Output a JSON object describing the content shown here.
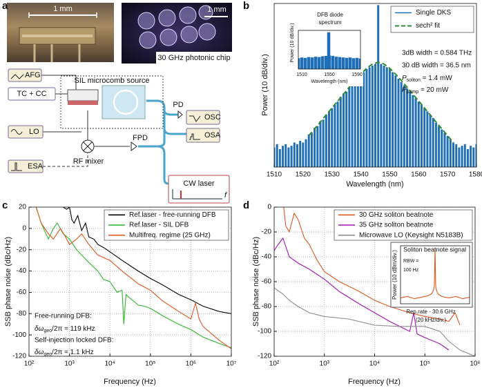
{
  "panel_labels": [
    "a",
    "b",
    "c",
    "d"
  ],
  "diagram": {
    "photo_scale": "1 mm",
    "chip_scale": "1 mm",
    "chip_caption": "30 GHz photonic chip",
    "blocks": {
      "afg": "AFG",
      "tc_cc": "TC + CC",
      "sil": "SIL microcomb source",
      "pd": "PD",
      "osc": "OSC",
      "osa": "OSA",
      "lo": "LO",
      "fpd": "FPD",
      "esa": "ESA",
      "mixer": "RF mixer",
      "cw": "CW laser",
      "f": "f"
    }
  },
  "chart_data": [
    {
      "type": "line",
      "xlabel": "Wavelength (nm)",
      "ylabel": "Power (10 dB/div.)",
      "xlim": [
        1510,
        1580
      ],
      "xticks": [
        1510,
        1520,
        1530,
        1540,
        1550,
        1560,
        1570,
        1580
      ],
      "ylim": [
        -100,
        0
      ],
      "grid": false,
      "legend": "upper right",
      "annotations": [
        "3dB width = 0.584 THz",
        "30 dB width = 36.5 nm",
        {
          "symbol": "P",
          "sub": "soliton",
          "rest": " = 1.4 mW"
        },
        {
          "symbol": "P",
          "sub": "pump",
          "rest": " = 20 mW"
        }
      ],
      "series": [
        {
          "name": "Single DKS",
          "color": "#1f6fb8",
          "style": "bars",
          "x": [
            1510,
            1511,
            1512,
            1513,
            1514,
            1515,
            1516,
            1517,
            1518,
            1519,
            1520,
            1521,
            1522,
            1523,
            1524,
            1525,
            1526,
            1527,
            1528,
            1529,
            1530,
            1531,
            1532,
            1533,
            1534,
            1535,
            1536,
            1537,
            1538,
            1539,
            1540,
            1541,
            1542,
            1543,
            1544,
            1545,
            1546,
            1547,
            1548,
            1549,
            1550,
            1551,
            1552,
            1553,
            1554,
            1555,
            1556,
            1557,
            1558,
            1559,
            1560,
            1561,
            1562,
            1563,
            1564,
            1565,
            1566,
            1567,
            1568,
            1569,
            1570,
            1571,
            1572,
            1573,
            1574,
            1575,
            1576,
            1577,
            1578,
            1579,
            1580
          ],
          "values": [
            -88,
            -86,
            -89,
            -87,
            -86,
            -88,
            -87,
            -85,
            -86,
            -84,
            -85,
            -83,
            -80,
            -79,
            -76,
            -75,
            -72,
            -71,
            -68,
            -66,
            -64,
            -62,
            -60,
            -57,
            -55,
            -54,
            -51,
            -50,
            -47,
            -46,
            -44,
            -42,
            -40,
            -39,
            -38,
            -37,
            -1,
            -37,
            -38,
            -39,
            -40,
            -42,
            -44,
            -46,
            -48,
            -50,
            -52,
            -54,
            -56,
            -58,
            -60,
            -62,
            -64,
            -66,
            -68,
            -70,
            -73,
            -75,
            -77,
            -79,
            -81,
            -83,
            -85,
            -86,
            -88,
            -87,
            -86,
            -89,
            -87,
            -88,
            -86
          ]
        },
        {
          "name": "sech² fit",
          "color": "#2e8b2e",
          "style": "dashed",
          "x": [
            1522,
            1524,
            1526,
            1528,
            1530,
            1532,
            1534,
            1536,
            1538,
            1540,
            1542,
            1544,
            1546,
            1548,
            1550,
            1552,
            1554,
            1556,
            1558,
            1560,
            1562,
            1564,
            1566,
            1568,
            1570,
            1572
          ],
          "values": [
            -80.8,
            -76.6,
            -72.4,
            -68.1,
            -63.9,
            -59.6,
            -55.4,
            -51.2,
            -47.1,
            -43.2,
            -39.6,
            -37.0,
            -36,
            -37.0,
            -39.6,
            -43.2,
            -47.1,
            -51.2,
            -55.4,
            -59.6,
            -63.9,
            -68.1,
            -72.4,
            -76.6,
            -80.8,
            -85.0
          ]
        }
      ]
    },
    {
      "type": "line",
      "title_lines": [
        "DFB diode",
        "spectrum"
      ],
      "xlabel": "Wavelength (nm)",
      "ylabel": "Power (10 dB/div.)",
      "xlim": [
        1505,
        1595
      ],
      "xticks": [
        1510,
        1550,
        1590
      ],
      "ylim": [
        -100,
        0
      ],
      "grid": false,
      "series": [
        {
          "color": "#1f6fb8",
          "style": "bars",
          "x": [
            1505,
            1510,
            1515,
            1520,
            1525,
            1530,
            1535,
            1540,
            1545,
            1549,
            1550,
            1555,
            1560,
            1565,
            1570,
            1575,
            1580,
            1585,
            1590,
            1595
          ],
          "values": [
            -72,
            -70,
            -71,
            -69,
            -70,
            -68,
            -69,
            -67,
            -66,
            -5,
            -65,
            -66,
            -68,
            -69,
            -70,
            -71,
            -70,
            -72,
            -71,
            -73
          ]
        }
      ]
    },
    {
      "type": "line",
      "xlabel": "Frequency (Hz)",
      "ylabel": "SSB phase noise (dBc/Hz)",
      "xscale": "log",
      "xlim": [
        100,
        10000000
      ],
      "xticks": [
        {
          "value": 100,
          "label": "10²"
        },
        {
          "value": 1000,
          "label": "10³"
        },
        {
          "value": 10000,
          "label": "10⁴"
        },
        {
          "value": 100000,
          "label": "10⁵"
        },
        {
          "value": 1000000,
          "label": "10⁶"
        },
        {
          "value": 10000000,
          "label": "10⁷"
        }
      ],
      "ylim": [
        -120,
        20
      ],
      "yticks": [
        -120,
        -100,
        -80,
        -60,
        -40,
        -20,
        0,
        20
      ],
      "grid": true,
      "legend": "upper right",
      "annotations": [
        "Free-running DFB:",
        {
          "symbol": "δω",
          "sub": "geo",
          "rest": "/2π = 119 kHz"
        },
        "Self-injection locked DFB:",
        {
          "symbol": "δω",
          "sub": "geo",
          "rest": "/2π = 1.1 kHz"
        }
      ],
      "series": [
        {
          "name": "Ref.laser - free-running DFB",
          "color": "#000000",
          "style": "solid",
          "x": [
            700,
            850,
            1000,
            1150,
            1300,
            1600,
            2000,
            2500,
            3000,
            4000,
            5000,
            7000,
            10000,
            20000,
            50000,
            100000,
            200000,
            500000,
            1000000,
            2000000,
            5000000,
            10000000
          ],
          "values": [
            20,
            18,
            20,
            8,
            5,
            12,
            -2,
            5,
            -8,
            -10,
            -15,
            -18,
            -22,
            -30,
            -40,
            -47,
            -53,
            -62,
            -67,
            -73,
            -78,
            -80
          ]
        },
        {
          "name": "Ref.laser - SIL DFB",
          "color": "#2fb52f",
          "style": "solid",
          "x": [
            150,
            200,
            300,
            400,
            500,
            700,
            1000,
            1500,
            2000,
            3000,
            5000,
            7000,
            10000,
            15000,
            20000,
            22000,
            25000,
            30000,
            50000,
            70000,
            100000,
            200000,
            500000,
            1000000,
            2000000,
            5000000,
            10000000
          ],
          "values": [
            20,
            5,
            -10,
            0,
            5,
            -5,
            -10,
            -20,
            -25,
            -32,
            -40,
            -48,
            -50,
            -60,
            -58,
            -90,
            -62,
            -65,
            -72,
            -73,
            -75,
            -82,
            -90,
            -95,
            -102,
            -108,
            -112
          ]
        },
        {
          "name": "Multifreq. regime (25 GHz)",
          "color": "#e0561f",
          "style": "solid",
          "x": [
            150,
            200,
            300,
            400,
            600,
            800,
            1000,
            1500,
            2000,
            3000,
            5000,
            10000,
            20000,
            50000,
            100000,
            200000,
            500000,
            1000000,
            1300000,
            1600000,
            2000000,
            5000000,
            10000000
          ],
          "values": [
            20,
            5,
            -5,
            -10,
            0,
            -8,
            -15,
            -10,
            -5,
            -15,
            -25,
            -30,
            -40,
            -52,
            -58,
            -68,
            -78,
            -85,
            -70,
            -85,
            -92,
            -105,
            -113
          ]
        }
      ]
    },
    {
      "type": "line",
      "xlabel": "Frequency (Hz)",
      "ylabel": "SSB phase noise (dBc/Hz)",
      "xscale": "log",
      "xlim": [
        100,
        1000000
      ],
      "xticks": [
        {
          "value": 100,
          "label": "10²"
        },
        {
          "value": 1000,
          "label": "10³"
        },
        {
          "value": 10000,
          "label": "10⁴"
        },
        {
          "value": 100000,
          "label": "10⁵"
        },
        {
          "value": 1000000,
          "label": "10⁶"
        }
      ],
      "ylim": [
        -120,
        0
      ],
      "yticks": [
        -120,
        -100,
        -80,
        -60,
        -40,
        -20,
        0
      ],
      "grid": true,
      "legend": "upper right",
      "series": [
        {
          "name": "30 GHz soliton beatnote",
          "color": "#e0561f",
          "style": "solid",
          "x": [
            150,
            170,
            200,
            250,
            300,
            400,
            500,
            700,
            1000,
            2000,
            5000,
            10000,
            20000,
            50000,
            100000,
            200000,
            300000,
            400000,
            500000
          ],
          "values": [
            5,
            -15,
            -20,
            -5,
            -10,
            -25,
            -30,
            -42,
            -52,
            -60,
            -68,
            -75,
            -80,
            -85,
            -88,
            -90,
            -92,
            -85,
            -95
          ]
        },
        {
          "name": "35 GHz soliton beatnote",
          "color": "#a312b5",
          "style": "solid",
          "x": [
            100,
            120,
            150,
            200,
            300,
            500,
            1000,
            2000,
            5000,
            10000,
            20000,
            50000,
            60000,
            70000,
            100000,
            200000,
            300000
          ],
          "values": [
            -35,
            -30,
            -25,
            -40,
            -45,
            -50,
            -58,
            -68,
            -78,
            -85,
            -92,
            -100,
            -85,
            -102,
            -105,
            -110,
            -115
          ]
        },
        {
          "name": "Microwave LO (Keysight N5183B)",
          "color": "#8c8c8c",
          "style": "solid",
          "x": [
            100,
            150,
            200,
            300,
            500,
            1000,
            3000,
            10000,
            30000,
            100000,
            200000,
            300000,
            500000,
            1000000
          ],
          "values": [
            -65,
            -70,
            -75,
            -80,
            -85,
            -88,
            -90,
            -95,
            -96,
            -96,
            -100,
            -108,
            -115,
            -120
          ]
        }
      ]
    },
    {
      "type": "line",
      "title_lines": [
        "Soliton beatnote signal"
      ],
      "xlabel": "Rep.rate - 30.6 GHz",
      "xlabel_note": "(20 kHz/div.)",
      "ylabel": "Power (10 dBm/div.)",
      "xlim": [
        -100,
        100
      ],
      "ylim": [
        -80,
        0
      ],
      "grid": false,
      "annotations": [
        "RBW =",
        "100 Hz"
      ],
      "series": [
        {
          "color": "#e0561f",
          "style": "solid",
          "x": [
            -100,
            -80,
            -60,
            -40,
            -20,
            -10,
            -5,
            -2,
            -1,
            0,
            1,
            2,
            5,
            10,
            20,
            40,
            60,
            80,
            100
          ],
          "values": [
            -72,
            -70,
            -73,
            -71,
            -69,
            -66,
            -62,
            -55,
            -30,
            -3,
            -32,
            -56,
            -63,
            -67,
            -70,
            -72,
            -70,
            -73,
            -71
          ]
        }
      ]
    }
  ]
}
